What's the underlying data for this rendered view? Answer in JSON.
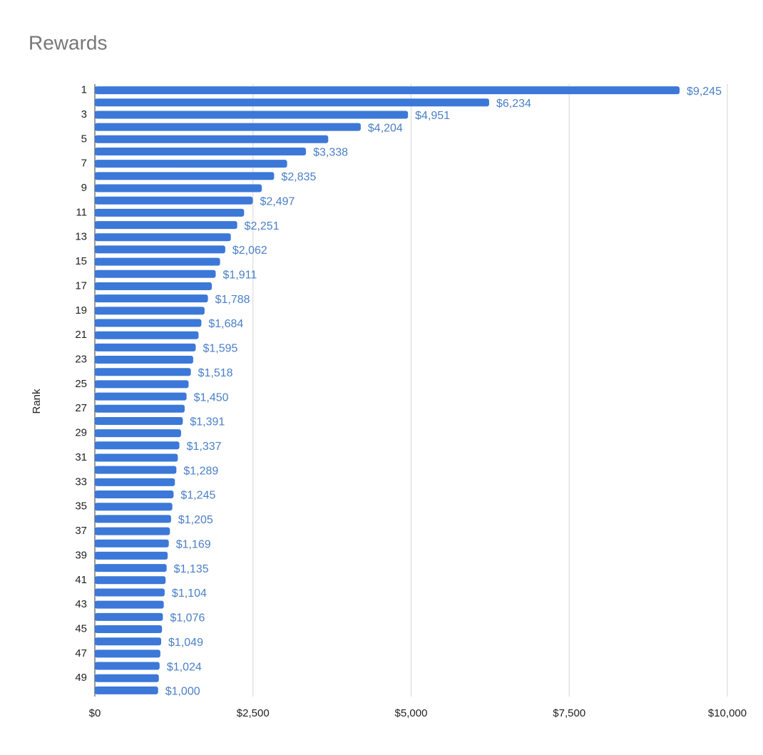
{
  "chart_data": {
    "type": "hbar",
    "title": "Rewards",
    "y_label": "Rank",
    "categories": [
      "1",
      null,
      "3",
      null,
      "5",
      null,
      "7",
      null,
      "9",
      null,
      "11",
      null,
      "13",
      null,
      "15",
      null,
      "17",
      null,
      "19",
      null,
      "21",
      null,
      "23",
      null,
      "25",
      null,
      "27",
      null,
      "29",
      null,
      "31",
      null,
      "33",
      null,
      "35",
      null,
      "37",
      null,
      "39",
      null,
      "41",
      null,
      "43",
      null,
      "45",
      null,
      "47",
      null,
      "49",
      null
    ],
    "values": [
      9245,
      6234,
      4951,
      4204,
      3690,
      3338,
      3040,
      2835,
      2640,
      2497,
      2360,
      2251,
      2150,
      2062,
      1980,
      1911,
      1850,
      1788,
      1735,
      1684,
      1640,
      1595,
      1555,
      1518,
      1482,
      1450,
      1420,
      1391,
      1363,
      1337,
      1312,
      1289,
      1266,
      1245,
      1225,
      1205,
      1187,
      1169,
      1152,
      1135,
      1119,
      1104,
      1090,
      1076,
      1062,
      1049,
      1036,
      1024,
      1012,
      1000
    ],
    "value_labels": [
      "$9,245",
      "$6,234",
      "$4,951",
      "$4,204",
      null,
      "$3,338",
      null,
      "$2,835",
      null,
      "$2,497",
      null,
      "$2,251",
      null,
      "$2,062",
      null,
      "$1,911",
      null,
      "$1,788",
      null,
      "$1,684",
      null,
      "$1,595",
      null,
      "$1,518",
      null,
      "$1,450",
      null,
      "$1,391",
      null,
      "$1,337",
      null,
      "$1,289",
      null,
      "$1,245",
      null,
      "$1,205",
      null,
      "$1,169",
      null,
      "$1,135",
      null,
      "$1,104",
      null,
      "$1,076",
      null,
      "$1,049",
      null,
      "$1,024",
      null,
      "$1,000"
    ],
    "color": "#3c78d8",
    "label_color": "#4a7fc7",
    "xlim": [
      0,
      10000
    ],
    "xticks": [
      {
        "value": 0,
        "label": "$0"
      },
      {
        "value": 2500,
        "label": "$2,500"
      },
      {
        "value": 5000,
        "label": "$5,000"
      },
      {
        "value": 7500,
        "label": "$7,500"
      },
      {
        "value": 10000,
        "label": "$10,000"
      }
    ],
    "grid": true
  }
}
